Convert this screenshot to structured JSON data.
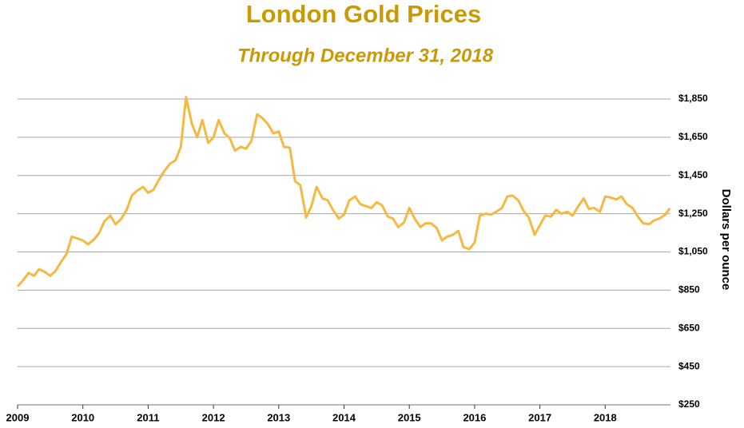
{
  "chart_data": {
    "type": "line",
    "title": "London Gold Prices",
    "subtitle": "Through December 31, 2018",
    "y_axis_label": "Dollars per ounce",
    "x": [
      2009.0,
      2009.08,
      2009.17,
      2009.25,
      2009.33,
      2009.42,
      2009.5,
      2009.58,
      2009.67,
      2009.75,
      2009.83,
      2009.92,
      2010.0,
      2010.08,
      2010.17,
      2010.25,
      2010.33,
      2010.42,
      2010.5,
      2010.58,
      2010.67,
      2010.75,
      2010.83,
      2010.92,
      2011.0,
      2011.08,
      2011.17,
      2011.25,
      2011.33,
      2011.42,
      2011.5,
      2011.58,
      2011.67,
      2011.75,
      2011.83,
      2011.92,
      2012.0,
      2012.08,
      2012.17,
      2012.25,
      2012.33,
      2012.42,
      2012.5,
      2012.58,
      2012.67,
      2012.75,
      2012.83,
      2012.92,
      2013.0,
      2013.08,
      2013.17,
      2013.25,
      2013.33,
      2013.42,
      2013.5,
      2013.58,
      2013.67,
      2013.75,
      2013.83,
      2013.92,
      2014.0,
      2014.08,
      2014.17,
      2014.25,
      2014.33,
      2014.42,
      2014.5,
      2014.58,
      2014.67,
      2014.75,
      2014.83,
      2014.92,
      2015.0,
      2015.08,
      2015.17,
      2015.25,
      2015.33,
      2015.42,
      2015.5,
      2015.58,
      2015.67,
      2015.75,
      2015.83,
      2015.92,
      2016.0,
      2016.08,
      2016.17,
      2016.25,
      2016.33,
      2016.42,
      2016.5,
      2016.58,
      2016.67,
      2016.75,
      2016.83,
      2016.92,
      2017.0,
      2017.08,
      2017.17,
      2017.25,
      2017.33,
      2017.42,
      2017.5,
      2017.58,
      2017.67,
      2017.75,
      2017.83,
      2017.92,
      2018.0,
      2018.08,
      2018.17,
      2018.25,
      2018.33,
      2018.42,
      2018.5,
      2018.58,
      2018.67,
      2018.75,
      2018.83,
      2018.92,
      2018.99
    ],
    "series": [
      {
        "name": "Gold price",
        "color": "#f5b942",
        "values": [
          870,
          900,
          940,
          925,
          960,
          945,
          925,
          950,
          1000,
          1040,
          1130,
          1120,
          1110,
          1090,
          1115,
          1150,
          1210,
          1240,
          1195,
          1220,
          1270,
          1345,
          1370,
          1390,
          1360,
          1375,
          1430,
          1475,
          1510,
          1530,
          1600,
          1860,
          1720,
          1650,
          1740,
          1620,
          1650,
          1740,
          1670,
          1645,
          1580,
          1600,
          1590,
          1630,
          1770,
          1750,
          1720,
          1670,
          1680,
          1600,
          1595,
          1420,
          1400,
          1230,
          1290,
          1390,
          1330,
          1320,
          1270,
          1225,
          1245,
          1320,
          1340,
          1300,
          1290,
          1280,
          1310,
          1295,
          1235,
          1225,
          1180,
          1205,
          1280,
          1225,
          1180,
          1200,
          1200,
          1175,
          1110,
          1130,
          1140,
          1160,
          1075,
          1065,
          1100,
          1240,
          1250,
          1245,
          1260,
          1280,
          1340,
          1345,
          1320,
          1265,
          1230,
          1140,
          1190,
          1240,
          1235,
          1270,
          1250,
          1260,
          1240,
          1285,
          1330,
          1275,
          1280,
          1260,
          1340,
          1335,
          1325,
          1340,
          1300,
          1280,
          1235,
          1200,
          1195,
          1215,
          1225,
          1245,
          1279
        ]
      }
    ],
    "xlim": [
      2009,
      2019
    ],
    "xticks": [
      2009,
      2010,
      2011,
      2012,
      2013,
      2014,
      2015,
      2016,
      2017,
      2018
    ],
    "ylim": [
      250,
      1850
    ],
    "yticks": [
      {
        "value": 250,
        "label": "$250"
      },
      {
        "value": 450,
        "label": "$450"
      },
      {
        "value": 650,
        "label": "$650"
      },
      {
        "value": 850,
        "label": "$850"
      },
      {
        "value": 1050,
        "label": "$1,050"
      },
      {
        "value": 1250,
        "label": "$1,250"
      },
      {
        "value": 1450,
        "label": "$1,450"
      },
      {
        "value": 1650,
        "label": "$1,650"
      },
      {
        "value": 1850,
        "label": "$1,850"
      }
    ],
    "grid": true
  }
}
